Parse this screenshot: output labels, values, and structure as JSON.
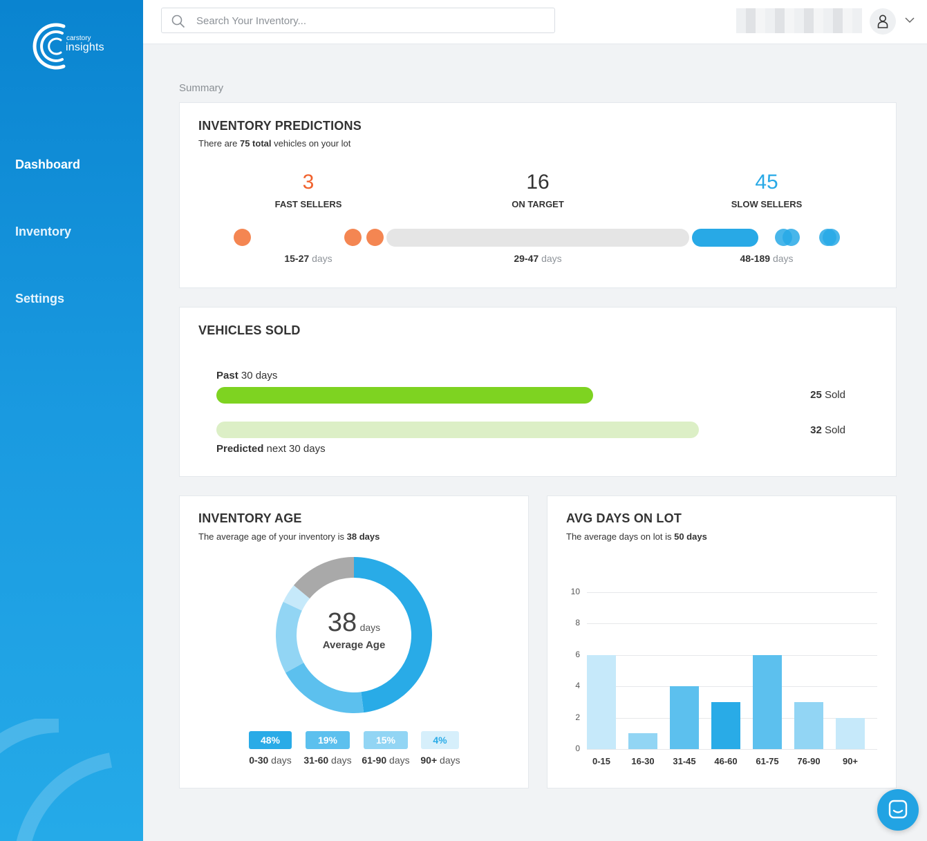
{
  "brand": {
    "small": "carstory",
    "big": "insights"
  },
  "nav": [
    {
      "label": "Dashboard"
    },
    {
      "label": "Inventory"
    },
    {
      "label": "Settings"
    }
  ],
  "search": {
    "placeholder": "Search Your Inventory..."
  },
  "summary_label": "Summary",
  "predictions": {
    "title": "INVENTORY PREDICTIONS",
    "subtitle_pre": "There are ",
    "subtitle_bold": "75 total",
    "subtitle_post": " vehicles on your lot",
    "fast": {
      "value": "3",
      "label": "FAST SELLERS",
      "range": "15-27",
      "unit": "days",
      "color": "#f0622d"
    },
    "target": {
      "value": "16",
      "label": "ON TARGET",
      "range": "29-47",
      "unit": "days",
      "color": "#333333"
    },
    "slow": {
      "value": "45",
      "label": "SLOW SELLERS",
      "range": "48-189",
      "unit": "days",
      "color": "#28a9e6"
    }
  },
  "sold": {
    "title": "VEHICLES SOLD",
    "past_bold": "Past",
    "past_rest": " 30 days",
    "past_value_bold": "25",
    "past_value_rest": " Sold",
    "past_fraction": 0.609,
    "pred_bold": "Predicted",
    "pred_rest": " next 30 days",
    "pred_value_bold": "32",
    "pred_value_rest": " Sold",
    "pred_fraction": 0.78,
    "past_color": "#7ed321",
    "pred_color": "#dcefc6"
  },
  "age": {
    "title": "INVENTORY AGE",
    "subtitle_pre": "The average age of your inventory is ",
    "subtitle_bold": "38 days",
    "center_value": "38",
    "center_unit": "days",
    "center_caption": "Average Age",
    "segments": [
      {
        "pct": "48%",
        "label_bold": "0-30",
        "label_rest": " days",
        "value": 48,
        "color": "#29abe7"
      },
      {
        "pct": "19%",
        "label_bold": "31-60",
        "label_rest": " days",
        "value": 19,
        "color": "#5cc0ee"
      },
      {
        "pct": "15%",
        "label_bold": "61-90",
        "label_rest": " days",
        "value": 15,
        "color": "#92d5f4"
      },
      {
        "pct": "4%",
        "label_bold": "90+",
        "label_rest": " days",
        "value": 4,
        "color": "#c6e9fa"
      },
      {
        "pct": "",
        "label_bold": "",
        "label_rest": "",
        "value": 14,
        "color": "#a9a9a9"
      }
    ]
  },
  "avg": {
    "title": "AVG DAYS ON LOT",
    "subtitle_pre": "The average days on lot is ",
    "subtitle_bold": "50 days",
    "chart_data": {
      "type": "bar",
      "categories": [
        "0-15",
        "16-30",
        "31-45",
        "46-60",
        "61-75",
        "76-90",
        "90+"
      ],
      "values": [
        6,
        1,
        4,
        3,
        6,
        3,
        2
      ],
      "colors": [
        "#c6e9fa",
        "#92d5f4",
        "#5cc0ee",
        "#29abe7",
        "#5cc0ee",
        "#92d5f4",
        "#c6e9fa"
      ],
      "yticks": [
        "10",
        "8",
        "6",
        "4",
        "2",
        "0"
      ],
      "ylim": [
        0,
        10
      ],
      "title": "",
      "xlabel": "",
      "ylabel": ""
    }
  }
}
